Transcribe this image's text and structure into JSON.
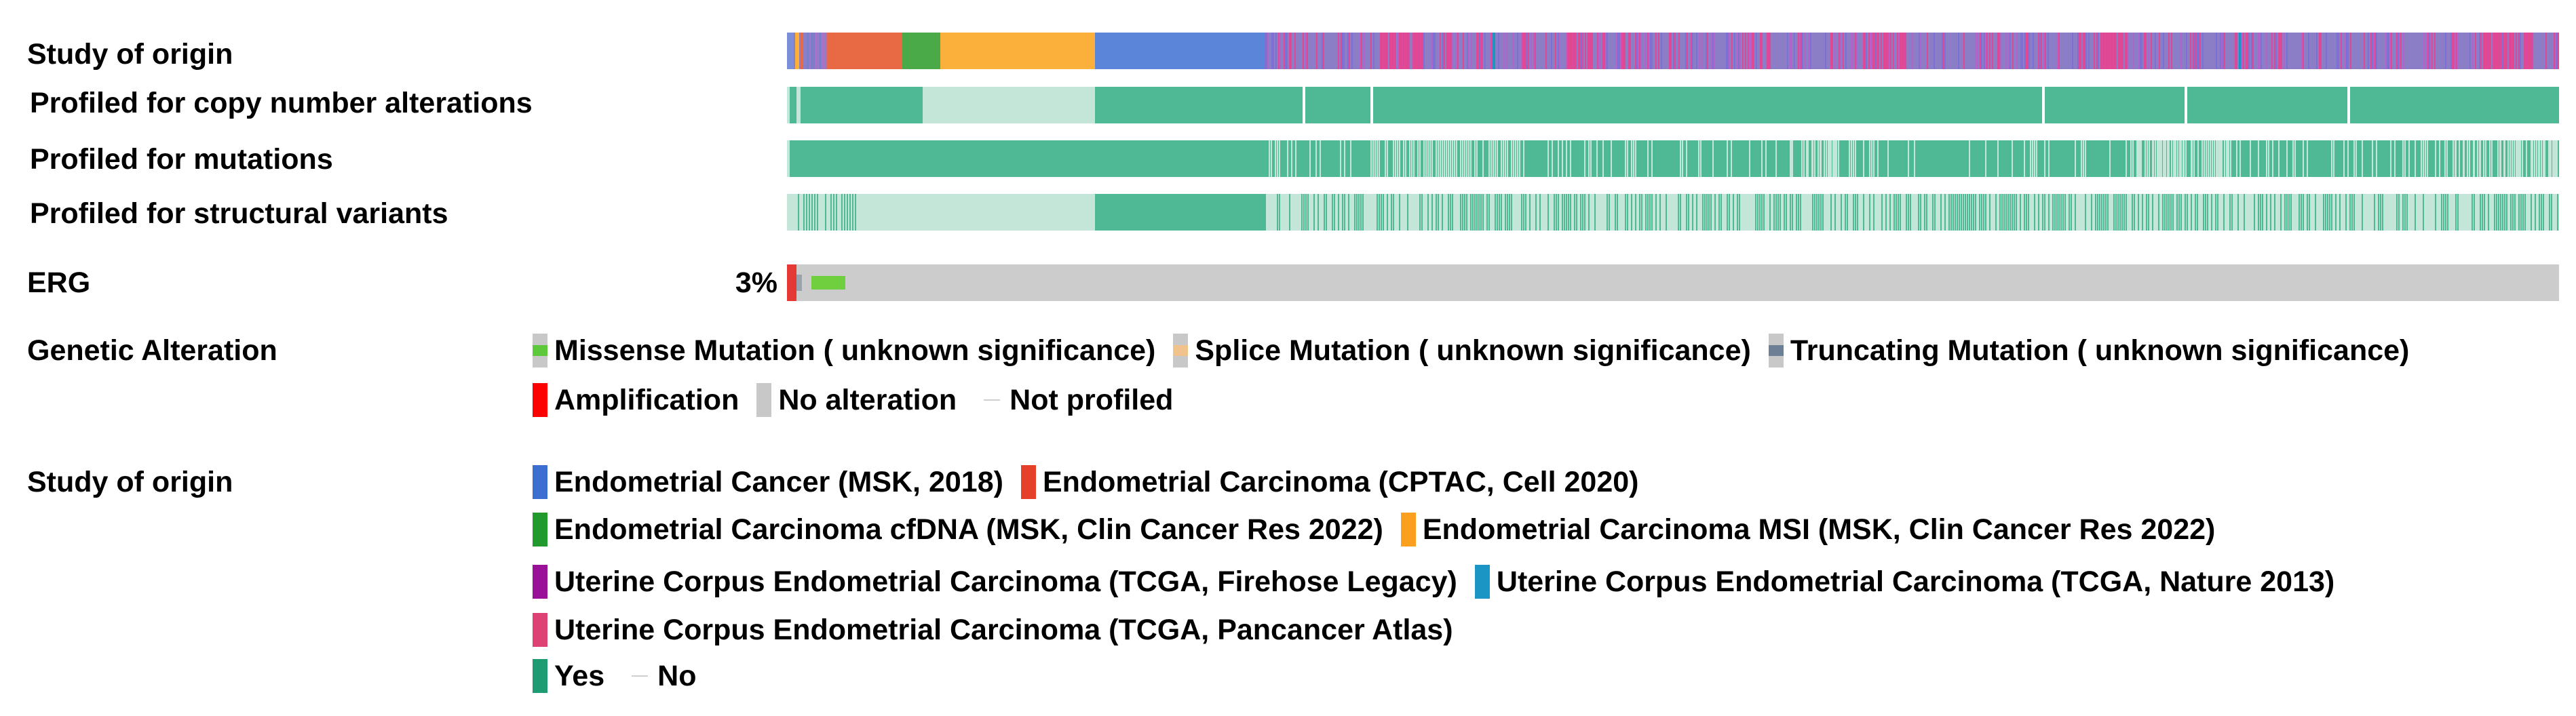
{
  "track_labels": {
    "study": "Study of origin",
    "cna": "Profiled for copy number alterations",
    "mutations": "Profiled for mutations",
    "sv": "Profiled for structural variants",
    "gene": "ERG",
    "gene_pct": "3%"
  },
  "genetic_alteration": {
    "title": "Genetic Alteration",
    "items": [
      {
        "label": "Missense Mutation ( unknown significance)",
        "color": "#5dc93a"
      },
      {
        "label": "Splice Mutation ( unknown significance)",
        "color": "#f0c38c"
      },
      {
        "label": "Truncating Mutation ( unknown significance)",
        "color": "#6d7f94"
      },
      {
        "label": "Amplification",
        "color": "#ff0000"
      },
      {
        "label": "No alteration",
        "color": "#c8c8c8"
      },
      {
        "label": "Not profiled",
        "color": "#cfcfcf"
      }
    ]
  },
  "study_legend": {
    "title": "Study of origin",
    "items": [
      {
        "label": "Endometrial Cancer (MSK, 2018)",
        "color": "#3d6fd1"
      },
      {
        "label": "Endometrial Carcinoma (CPTAC, Cell 2020)",
        "color": "#e5412a"
      },
      {
        "label": "Endometrial Carcinoma cfDNA (MSK, Clin Cancer Res 2022)",
        "color": "#22992c"
      },
      {
        "label": "Endometrial Carcinoma MSI (MSK, Clin Cancer Res 2022)",
        "color": "#fa9f1e"
      },
      {
        "label": "Uterine Corpus Endometrial Carcinoma (TCGA, Firehose Legacy)",
        "color": "#991199"
      },
      {
        "label": "Uterine Corpus Endometrial Carcinoma (TCGA, Nature 2013)",
        "color": "#1b95c4"
      },
      {
        "label": "Uterine Corpus Endometrial Carcinoma (TCGA, Pancancer Atlas)",
        "color": "#de4275"
      },
      {
        "label": "Yes",
        "color": "#1e9b72"
      },
      {
        "label": "No",
        "color": "#cfcfcf"
      }
    ]
  },
  "track_colors": {
    "profiled_yes": "#4fb996",
    "profiled_no": "#c3e6d9",
    "no_alteration": "#cccccc",
    "study_purple": "#8b7dc6",
    "study_orange": "#e86a45",
    "study_green": "#4aaa47",
    "study_yellow": "#fbb03b",
    "study_blue": "#5b85d9",
    "study_pink": "#dd4693"
  }
}
